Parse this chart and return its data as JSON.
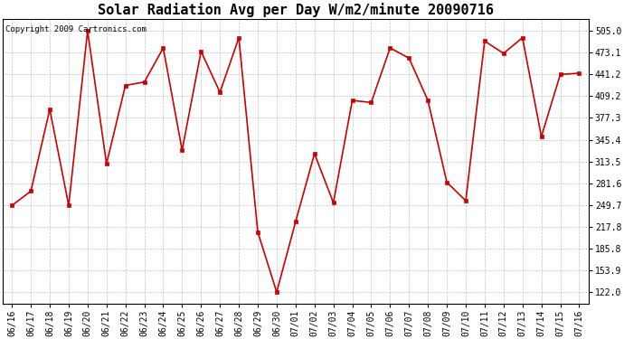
{
  "title": "Solar Radiation Avg per Day W/m2/minute 20090716",
  "copyright": "Copyright 2009 Cartronics.com",
  "x_labels": [
    "06/16",
    "06/17",
    "06/18",
    "06/19",
    "06/20",
    "06/21",
    "06/22",
    "06/23",
    "06/24",
    "06/25",
    "06/26",
    "06/27",
    "06/28",
    "06/29",
    "06/30",
    "07/01",
    "07/02",
    "07/03",
    "07/04",
    "07/05",
    "07/06",
    "07/07",
    "07/08",
    "07/09",
    "07/10",
    "07/11",
    "07/12",
    "07/13",
    "07/14",
    "07/15",
    "07/16"
  ],
  "y_values": [
    249,
    270,
    390,
    249,
    505,
    310,
    425,
    430,
    480,
    330,
    475,
    415,
    495,
    210,
    122,
    225,
    325,
    253,
    403,
    400,
    480,
    465,
    403,
    283,
    256,
    490,
    472,
    495,
    350,
    441,
    443
  ],
  "y_ticks": [
    122.0,
    153.9,
    185.8,
    217.8,
    249.7,
    281.6,
    313.5,
    345.4,
    377.3,
    409.2,
    441.2,
    473.1,
    505.0
  ],
  "line_color": "#cc0000",
  "marker": "s",
  "marker_size": 2.5,
  "bg_color": "#ffffff",
  "grid_color": "#999999",
  "title_fontsize": 11,
  "copyright_fontsize": 6.5,
  "tick_fontsize": 7,
  "ylim": [
    105,
    522
  ],
  "figsize": [
    6.9,
    3.75
  ],
  "dpi": 100
}
